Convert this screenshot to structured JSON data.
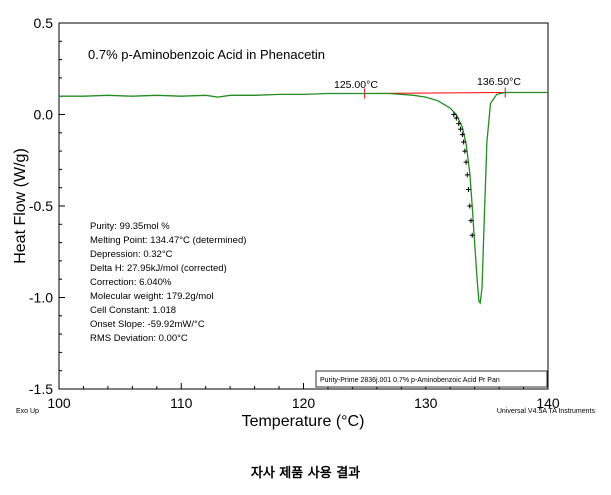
{
  "chart_data": {
    "type": "line",
    "title": "0.7% p-Aminobenzoic Acid in Phenacetin",
    "xlabel": "Temperature (°C)",
    "ylabel": "Heat Flow (W/g)",
    "xlim": [
      100,
      140
    ],
    "ylim": [
      -1.5,
      0.5
    ],
    "x_ticks": [
      100,
      110,
      120,
      130,
      140
    ],
    "x_tick_labels": [
      "100",
      "110",
      "120",
      "130",
      "140"
    ],
    "y_ticks": [
      0.5,
      0.0,
      -0.5,
      -1.0,
      -1.5
    ],
    "y_tick_labels": [
      "0.5",
      "0.0",
      "-0.5",
      "-1.0",
      "-1.5"
    ],
    "grid": false,
    "series": [
      {
        "color": "#228B22",
        "x": [
          100,
          102,
          104,
          106,
          108,
          110,
          112,
          113,
          114,
          116,
          118,
          120,
          122,
          124,
          125,
          126,
          127,
          128,
          129,
          130,
          131,
          132,
          132.5,
          133,
          133.3,
          133.6,
          133.8,
          134.0,
          134.2,
          134.35,
          134.45,
          134.6,
          134.8,
          135.0,
          135.3,
          135.8,
          136.5,
          138,
          140
        ],
        "y": [
          0.1,
          0.1,
          0.105,
          0.1,
          0.105,
          0.1,
          0.105,
          0.095,
          0.105,
          0.105,
          0.11,
          0.11,
          0.115,
          0.115,
          0.115,
          0.115,
          0.115,
          0.11,
          0.105,
          0.095,
          0.075,
          0.035,
          0.0,
          -0.07,
          -0.16,
          -0.32,
          -0.5,
          -0.7,
          -0.9,
          -1.02,
          -1.03,
          -0.95,
          -0.55,
          -0.15,
          0.06,
          0.11,
          0.12,
          0.12,
          0.12
        ]
      }
    ],
    "marker_points": {
      "x": [
        132.3,
        132.5,
        132.7,
        132.85,
        133.0,
        133.1,
        133.2,
        133.3,
        133.4,
        133.5,
        133.6,
        133.7,
        133.8
      ],
      "y": [
        0.0,
        -0.02,
        -0.05,
        -0.08,
        -0.11,
        -0.15,
        -0.2,
        -0.26,
        -0.33,
        -0.41,
        -0.5,
        -0.58,
        -0.66
      ]
    },
    "baseline": {
      "color": "#FF0000",
      "x": [
        125.0,
        136.5
      ],
      "y": [
        0.115,
        0.12
      ]
    },
    "limit_labels": [
      "125.00°C",
      "136.50°C"
    ],
    "results": [
      "Purity: 99.35mol %",
      "Melting Point: 134.47°C (determined)",
      "Depression: 0.32°C",
      "Delta H: 27.95kJ/mol (corrected)",
      "Correction: 6.040%",
      "Molecular weight: 179.2g/mol",
      "Cell Constant: 1.018",
      "Onset Slope: -59.92mW/°C",
      "RMS Deviation: 0.00°C"
    ],
    "file_label": "Purity-Prime 2836j.001  0.7% p-Aminobenzoic Acid Pr Pan",
    "exo_label": "Exo Up",
    "instrument_label": "Universal V4.5A TA Instruments"
  },
  "caption": "자사 제품 사용 결과"
}
